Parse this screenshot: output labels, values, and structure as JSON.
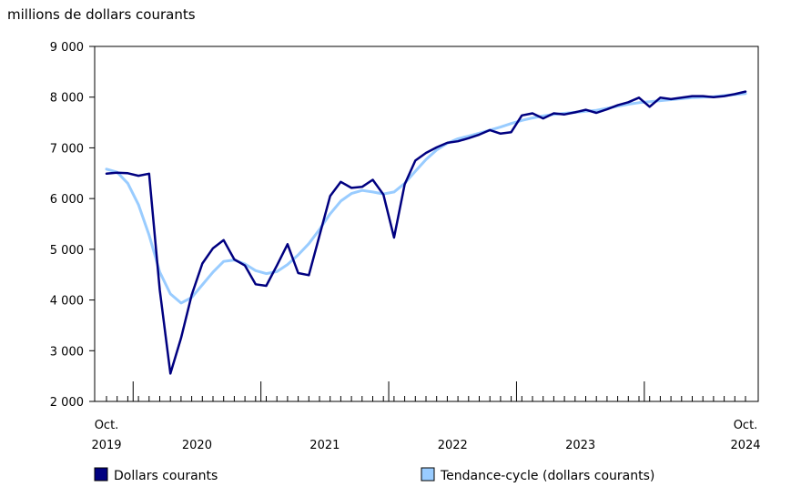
{
  "chart_data": {
    "type": "line",
    "unit_label": "millions de dollars courants",
    "y_ticks": [
      "9 000",
      "8 000",
      "7 000",
      "6 000",
      "5 000",
      "4 000",
      "3 000",
      "2 000"
    ],
    "y_tick_values": [
      9000,
      8000,
      7000,
      6000,
      5000,
      4000,
      3000,
      2000
    ],
    "ylim": [
      2000,
      9000
    ],
    "x_labels": [
      {
        "month_index": 0,
        "line1": "Oct.",
        "line2": "2019"
      },
      {
        "month_index": 8.5,
        "line1": "",
        "line2": "2020"
      },
      {
        "month_index": 20.5,
        "line1": "",
        "line2": "2021"
      },
      {
        "month_index": 32.5,
        "line1": "",
        "line2": "2022"
      },
      {
        "month_index": 44.5,
        "line1": "",
        "line2": "2023"
      },
      {
        "month_index": 60,
        "line1": "Oct.",
        "line2": "2024"
      }
    ],
    "x_start": "Oct. 2019",
    "x_end": "Oct. 2024",
    "month_count": 61,
    "year_boundaries": [
      2.5,
      14.5,
      26.5,
      38.5,
      50.5
    ],
    "series": [
      {
        "name": "Dollars courants",
        "color": "#000080",
        "values": [
          6490,
          6510,
          6500,
          6450,
          6490,
          4200,
          2550,
          3250,
          4100,
          4720,
          5020,
          5180,
          4800,
          4680,
          4310,
          4280,
          4680,
          5100,
          4530,
          4490,
          5270,
          6050,
          6330,
          6210,
          6230,
          6370,
          6080,
          5230,
          6280,
          6750,
          6900,
          7010,
          7100,
          7130,
          7190,
          7260,
          7350,
          7280,
          7310,
          7640,
          7680,
          7580,
          7680,
          7660,
          7700,
          7750,
          7690,
          7760,
          7840,
          7900,
          7990,
          7810,
          7990,
          7960,
          7990,
          8020,
          8020,
          8000,
          8020,
          8060,
          8110
        ]
      },
      {
        "name": "Tendance-cycle (dollars courants)",
        "color": "#99ccff",
        "values": [
          6580,
          6520,
          6300,
          5880,
          5280,
          4550,
          4120,
          3940,
          4050,
          4300,
          4550,
          4760,
          4790,
          4710,
          4580,
          4520,
          4560,
          4700,
          4890,
          5110,
          5390,
          5700,
          5950,
          6100,
          6160,
          6130,
          6090,
          6130,
          6300,
          6540,
          6770,
          6960,
          7090,
          7180,
          7230,
          7290,
          7350,
          7410,
          7480,
          7540,
          7590,
          7630,
          7660,
          7680,
          7700,
          7720,
          7740,
          7780,
          7820,
          7860,
          7890,
          7910,
          7930,
          7950,
          7970,
          7990,
          8000,
          8010,
          8030,
          8050,
          8070
        ]
      }
    ],
    "legend_position": "bottom"
  }
}
